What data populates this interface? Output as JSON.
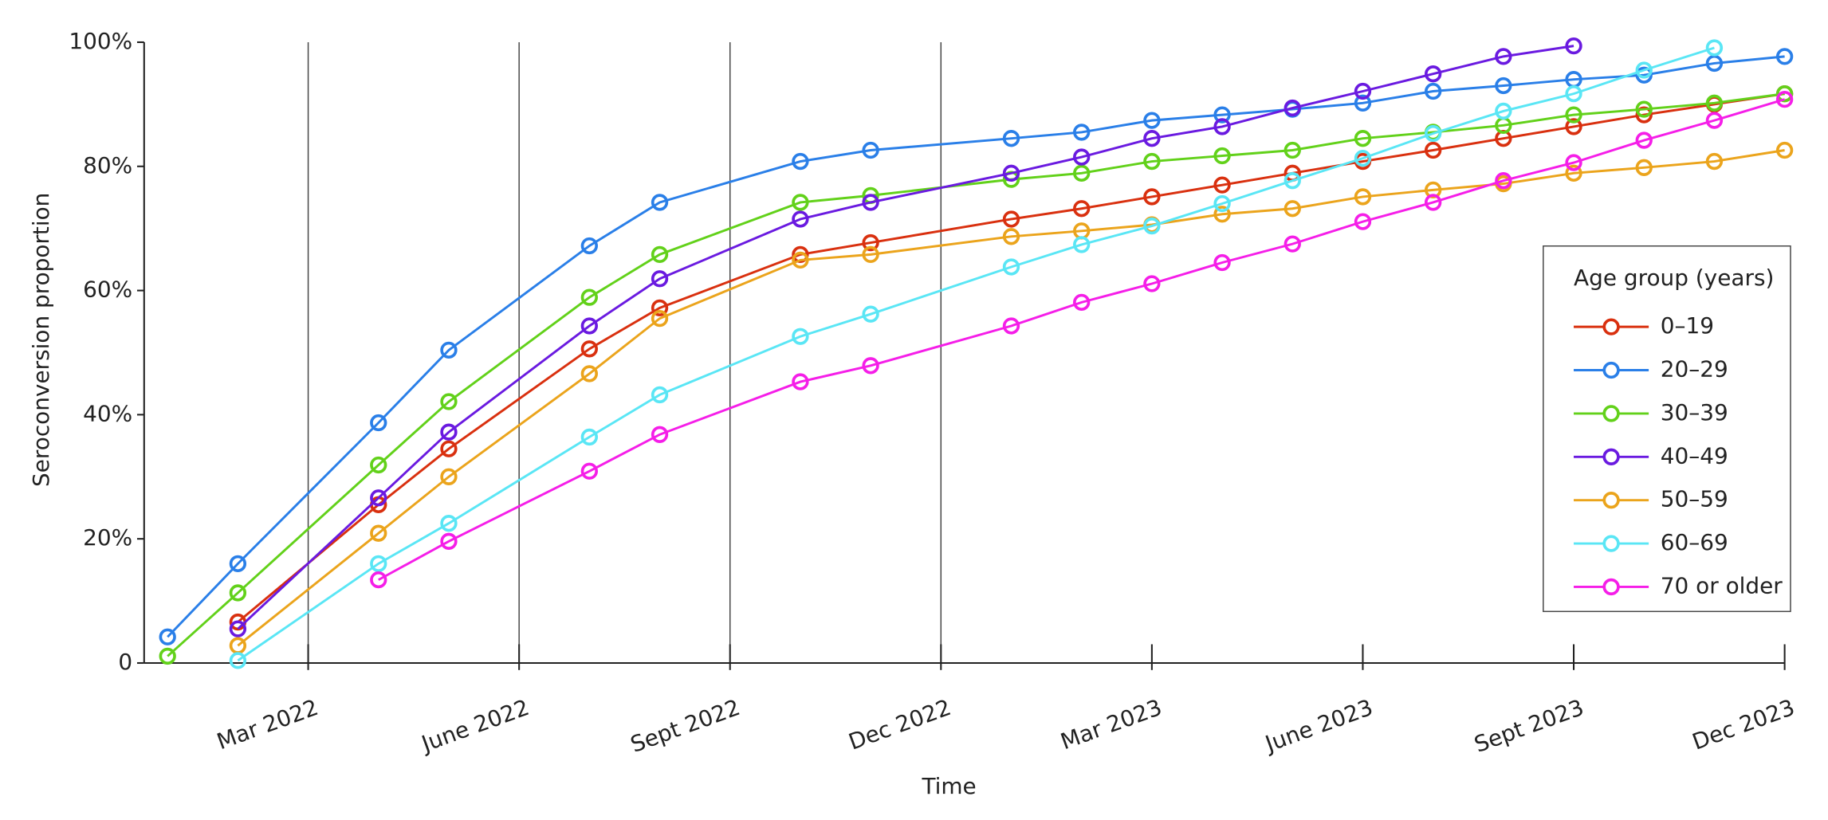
{
  "chart_data": {
    "type": "line",
    "x_label": "Time",
    "y_label": "Seroconversion proportion",
    "legend_title": "Age group (years)",
    "legend": "right",
    "x": [
      "2022-01",
      "2022-02",
      "2022-04",
      "2022-05",
      "2022-07",
      "2022-08",
      "2022-10",
      "2022-11",
      "2023-01",
      "2023-02",
      "2023-03",
      "2023-04",
      "2023-05",
      "2023-06",
      "2023-07",
      "2023-08",
      "2023-09",
      "2023-10",
      "2023-11",
      "2023-12"
    ],
    "xlim": [
      "2022-01",
      "2023-12"
    ],
    "xticks": [
      {
        "value": "2022-03",
        "label": "Mar 2022"
      },
      {
        "value": "2022-06",
        "label": "June 2022"
      },
      {
        "value": "2022-09",
        "label": "Sept 2022"
      },
      {
        "value": "2022-12",
        "label": "Dec 2022"
      },
      {
        "value": "2023-03",
        "label": "Mar 2023"
      },
      {
        "value": "2023-06",
        "label": "June 2023"
      },
      {
        "value": "2023-09",
        "label": "Sept 2023"
      },
      {
        "value": "2023-12",
        "label": "Dec 2023"
      }
    ],
    "ylim": [
      0,
      100
    ],
    "yticks": [
      0,
      {
        "value": 20,
        "label": "20%"
      },
      {
        "value": 40,
        "label": "40%"
      },
      {
        "value": 60,
        "label": "60%"
      },
      {
        "value": 80,
        "label": "80%"
      },
      {
        "value": 100,
        "label": "100%"
      }
    ],
    "series": [
      {
        "name": "0–19",
        "color": "#d9300f",
        "values": [
          null,
          6.6,
          25.5,
          34.5,
          50.6,
          57.2,
          65.8,
          67.7,
          71.5,
          73.2,
          75.1,
          77.0,
          78.9,
          80.8,
          82.6,
          84.5,
          86.4,
          88.3,
          90.0,
          91.7
        ]
      },
      {
        "name": "20–29",
        "color": "#2a7fe8",
        "values": [
          4.2,
          16.0,
          38.7,
          50.4,
          67.2,
          74.2,
          80.8,
          82.6,
          84.5,
          85.5,
          87.4,
          88.3,
          89.2,
          90.2,
          92.1,
          93.0,
          94.0,
          94.7,
          96.6,
          97.7
        ]
      },
      {
        "name": "30–39",
        "color": "#62d11a",
        "values": [
          1.1,
          11.3,
          31.9,
          42.1,
          58.9,
          65.8,
          74.2,
          75.3,
          77.9,
          78.9,
          80.8,
          81.7,
          82.6,
          84.5,
          85.5,
          86.6,
          88.3,
          89.2,
          90.2,
          91.7
        ]
      },
      {
        "name": "40–49",
        "color": "#6a1ae0",
        "values": [
          null,
          5.5,
          26.6,
          37.2,
          54.3,
          61.9,
          71.5,
          74.2,
          78.9,
          81.5,
          84.5,
          86.4,
          89.4,
          92.1,
          94.9,
          97.7,
          99.4,
          null,
          null,
          null
        ]
      },
      {
        "name": "50–59",
        "color": "#eba41c",
        "values": [
          null,
          2.8,
          20.9,
          30.0,
          46.6,
          55.5,
          64.9,
          65.8,
          68.7,
          69.6,
          70.6,
          72.3,
          73.2,
          75.1,
          76.2,
          77.2,
          78.9,
          79.8,
          80.8,
          82.6
        ]
      },
      {
        "name": "60–69",
        "color": "#5ae6f5",
        "values": [
          null,
          0.4,
          16.0,
          22.5,
          36.4,
          43.2,
          52.6,
          56.2,
          63.8,
          67.4,
          70.4,
          74.0,
          77.7,
          81.3,
          85.3,
          88.9,
          91.7,
          95.5,
          99.1,
          null
        ]
      },
      {
        "name": "70 or older",
        "color": "#f51ee8",
        "values": [
          null,
          null,
          13.4,
          19.6,
          30.9,
          36.8,
          45.3,
          47.9,
          54.3,
          58.1,
          61.1,
          64.5,
          67.5,
          71.1,
          74.2,
          77.7,
          80.6,
          84.2,
          87.4,
          90.8
        ]
      }
    ]
  }
}
